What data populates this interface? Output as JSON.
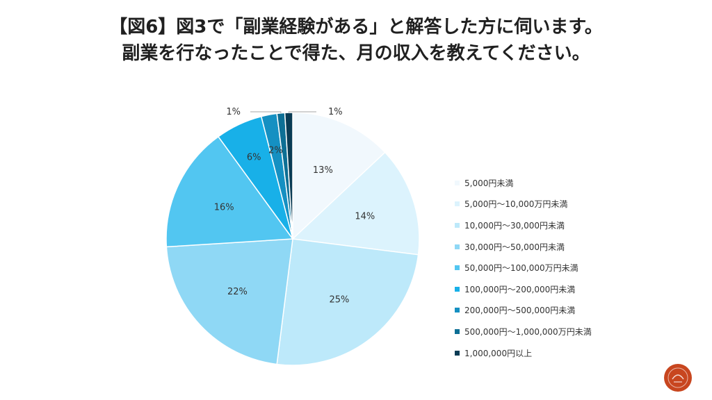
{
  "header": {
    "title_line1": "【図6】図3で「副業経験がある」と解答した方に伺います。",
    "title_line2": "副業を行なったことで得た、月の収入を教えてください。"
  },
  "chart_data": {
    "type": "pie",
    "unit": "%",
    "start_angle_deg": 0,
    "direction": "clockwise",
    "label_position": "inside-with-leaders-for-small",
    "legend_position": "right",
    "slices": [
      {
        "label": "5,000円未満",
        "value": 13,
        "display": "13%",
        "color": "#f1f8fd"
      },
      {
        "label": "5,000円～10,000万円未満",
        "value": 14,
        "display": "14%",
        "color": "#dcf3fd"
      },
      {
        "label": "10,000円～30,000円未満",
        "value": 25,
        "display": "25%",
        "color": "#bde9fa"
      },
      {
        "label": "30,000円～50,000円未満",
        "value": 22,
        "display": "22%",
        "color": "#8fd8f5"
      },
      {
        "label": "50,000円～100,000万円未満",
        "value": 16,
        "display": "16%",
        "color": "#52c6f1"
      },
      {
        "label": "100,000円～200,000円未満",
        "value": 6,
        "display": "6%",
        "color": "#18b0e8"
      },
      {
        "label": "200,000円～500,000円未満",
        "value": 2,
        "display": "2%",
        "color": "#1590c2"
      },
      {
        "label": "500,000円～1,000,000万円未満",
        "value": 1,
        "display": "1%",
        "color": "#0d6f95"
      },
      {
        "label": "1,000,000円以上",
        "value": 1,
        "display": "1%",
        "color": "#0a3c55"
      }
    ]
  },
  "colors": {
    "slice_border": "#ffffff",
    "label_text": "#333333",
    "leader_line": "#a6a6a6",
    "logo_badge": "#c8461f"
  },
  "logo": {
    "icon": "circular-brand-logo"
  }
}
